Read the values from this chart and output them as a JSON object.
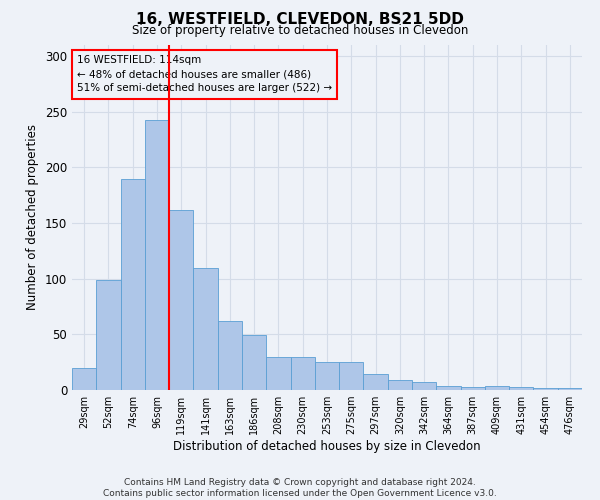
{
  "title": "16, WESTFIELD, CLEVEDON, BS21 5DD",
  "subtitle": "Size of property relative to detached houses in Clevedon",
  "xlabel": "Distribution of detached houses by size in Clevedon",
  "ylabel": "Number of detached properties",
  "bar_labels": [
    "29sqm",
    "52sqm",
    "74sqm",
    "96sqm",
    "119sqm",
    "141sqm",
    "163sqm",
    "186sqm",
    "208sqm",
    "230sqm",
    "253sqm",
    "275sqm",
    "297sqm",
    "320sqm",
    "342sqm",
    "364sqm",
    "387sqm",
    "409sqm",
    "431sqm",
    "454sqm",
    "476sqm"
  ],
  "bar_values": [
    20,
    99,
    190,
    243,
    162,
    110,
    62,
    49,
    30,
    30,
    25,
    25,
    14,
    9,
    7,
    4,
    3,
    4,
    3,
    2,
    2
  ],
  "bar_color": "#aec6e8",
  "bar_edge_color": "#5a9fd4",
  "vline_index": 3.5,
  "vline_color": "red",
  "annotation_line1": "16 WESTFIELD: 114sqm",
  "annotation_line2": "← 48% of detached houses are smaller (486)",
  "annotation_line3": "51% of semi-detached houses are larger (522) →",
  "annotation_box_color": "red",
  "ylim": [
    0,
    310
  ],
  "yticks": [
    0,
    50,
    100,
    150,
    200,
    250,
    300
  ],
  "grid_color": "#d4dce8",
  "footer_text": "Contains HM Land Registry data © Crown copyright and database right 2024.\nContains public sector information licensed under the Open Government Licence v3.0.",
  "bg_color": "#eef2f8"
}
